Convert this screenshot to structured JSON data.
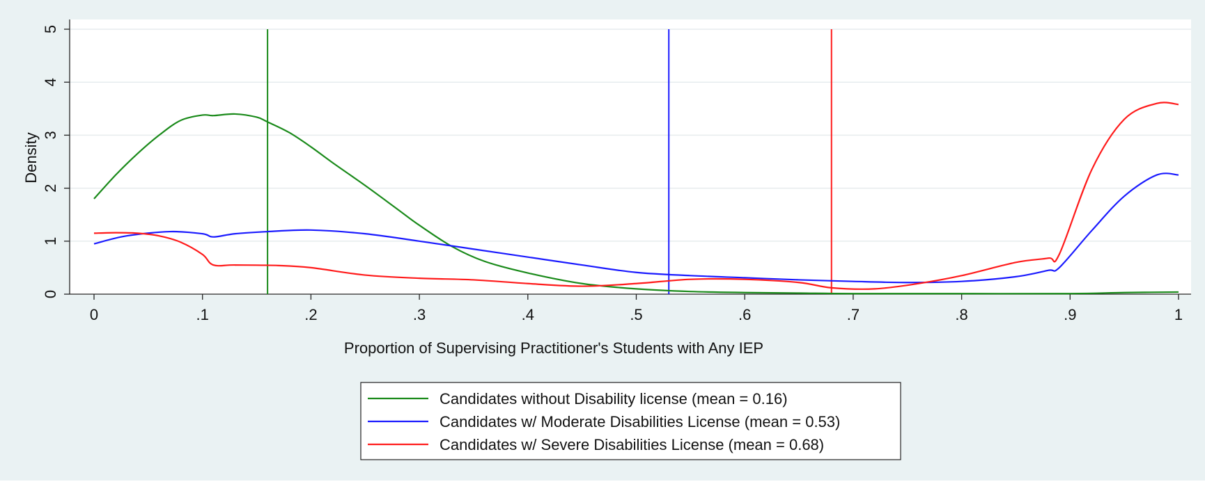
{
  "chart_data": {
    "type": "line",
    "title": "",
    "xlabel": "Proportion of Supervising Practitioner's Students with Any IEP",
    "ylabel": "Density",
    "xlim": [
      0,
      1
    ],
    "ylim": [
      0,
      5
    ],
    "x_ticks": [
      0,
      0.1,
      0.2,
      0.3,
      0.4,
      0.5,
      0.6,
      0.7,
      0.8,
      0.9,
      1
    ],
    "x_tick_labels": [
      "0",
      ".1",
      ".2",
      ".3",
      ".4",
      ".5",
      ".6",
      ".7",
      ".8",
      ".9",
      "1"
    ],
    "y_ticks": [
      0,
      1,
      2,
      3,
      4,
      5
    ],
    "y_tick_labels": [
      "0",
      "1",
      "2",
      "3",
      "4",
      "5"
    ],
    "grid": true,
    "legend_position": "bottom",
    "series": [
      {
        "name": "Candidates without Disability license (mean = 0.16)",
        "color": "#1a8a1a",
        "mean": 0.16,
        "x": [
          0,
          0.02,
          0.04,
          0.06,
          0.08,
          0.1,
          0.11,
          0.13,
          0.15,
          0.16,
          0.18,
          0.2,
          0.22,
          0.25,
          0.28,
          0.3,
          0.33,
          0.36,
          0.4,
          0.45,
          0.5,
          0.55,
          0.6,
          0.65,
          0.7,
          0.8,
          0.9,
          0.95,
          1
        ],
        "values": [
          1.8,
          2.25,
          2.65,
          3.0,
          3.28,
          3.38,
          3.37,
          3.4,
          3.34,
          3.25,
          3.05,
          2.78,
          2.48,
          2.05,
          1.6,
          1.3,
          0.9,
          0.62,
          0.4,
          0.2,
          0.1,
          0.05,
          0.03,
          0.02,
          0.01,
          0.01,
          0.01,
          0.03,
          0.04
        ]
      },
      {
        "name": "Candidates w/ Moderate Disabilities License (mean = 0.53)",
        "color": "#1a1aff",
        "mean": 0.53,
        "x": [
          0,
          0.03,
          0.07,
          0.1,
          0.11,
          0.13,
          0.16,
          0.2,
          0.25,
          0.3,
          0.35,
          0.4,
          0.45,
          0.5,
          0.55,
          0.6,
          0.65,
          0.7,
          0.75,
          0.8,
          0.85,
          0.88,
          0.89,
          0.92,
          0.95,
          0.98,
          1
        ],
        "values": [
          0.95,
          1.1,
          1.18,
          1.14,
          1.08,
          1.14,
          1.18,
          1.21,
          1.14,
          1.0,
          0.85,
          0.7,
          0.55,
          0.41,
          0.35,
          0.31,
          0.27,
          0.24,
          0.22,
          0.24,
          0.33,
          0.45,
          0.5,
          1.2,
          1.85,
          2.25,
          2.25
        ]
      },
      {
        "name": "Candidates w/ Severe Disabilities License (mean = 0.68)",
        "color": "#ff1a1a",
        "mean": 0.68,
        "x": [
          0,
          0.02,
          0.04,
          0.06,
          0.08,
          0.1,
          0.11,
          0.13,
          0.17,
          0.2,
          0.25,
          0.3,
          0.35,
          0.4,
          0.45,
          0.5,
          0.55,
          0.6,
          0.65,
          0.68,
          0.72,
          0.76,
          0.8,
          0.85,
          0.88,
          0.89,
          0.92,
          0.95,
          0.98,
          1
        ],
        "values": [
          1.15,
          1.16,
          1.15,
          1.1,
          0.98,
          0.75,
          0.55,
          0.55,
          0.54,
          0.5,
          0.36,
          0.3,
          0.27,
          0.2,
          0.15,
          0.2,
          0.28,
          0.28,
          0.22,
          0.12,
          0.1,
          0.2,
          0.35,
          0.6,
          0.68,
          0.75,
          2.35,
          3.3,
          3.6,
          3.58
        ]
      }
    ]
  }
}
